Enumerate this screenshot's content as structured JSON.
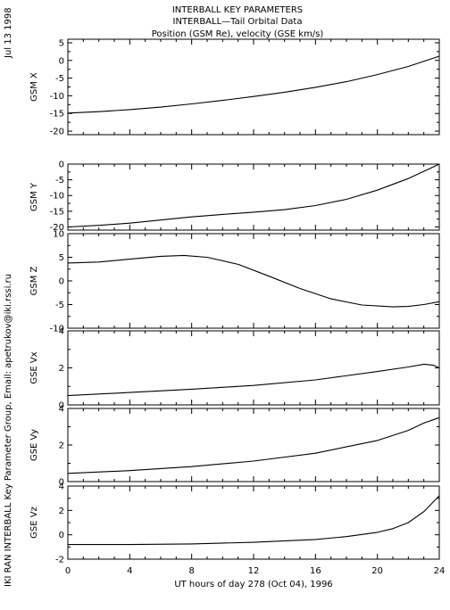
{
  "titles": [
    "INTERBALL KEY PARAMETERS",
    "INTERBALL—Tail Orbital Data",
    "Position (GSM Re), velocity (GSE km/s)"
  ],
  "side_date": "Jul 13 1998",
  "side_credit": "IKI RAN INTERBALL Key Parameter Group, Email: apetrukov@iki.rssi.ru",
  "chart_data": {
    "type": "line",
    "xlabel": "UT hours of day 278 (Oct 04), 1996",
    "xlim": [
      0,
      24
    ],
    "xticks": [
      0,
      4,
      8,
      12,
      16,
      20,
      24
    ],
    "panels": [
      {
        "name": "GSM X",
        "ylim": [
          -21,
          6
        ],
        "yticks": [
          5,
          0,
          -5,
          -10,
          -15,
          -20
        ],
        "x": [
          0,
          2,
          4,
          6,
          8,
          10,
          12,
          14,
          16,
          18,
          20,
          22,
          24
        ],
        "y": [
          -14.9,
          -14.5,
          -13.9,
          -13.2,
          -12.3,
          -11.3,
          -10.2,
          -9.0,
          -7.6,
          -6.0,
          -4.0,
          -1.7,
          1.2
        ]
      },
      {
        "name": "GSM Y",
        "ylim": [
          -21,
          0
        ],
        "yticks": [
          0,
          -5,
          -10,
          -15,
          -20
        ],
        "x": [
          0,
          2,
          4,
          6,
          8,
          10,
          12,
          14,
          16,
          18,
          20,
          22,
          24
        ],
        "y": [
          -20.0,
          -19.5,
          -18.8,
          -17.8,
          -16.8,
          -16.0,
          -15.3,
          -14.5,
          -13.2,
          -11.2,
          -8.3,
          -4.6,
          0.0
        ]
      },
      {
        "name": "GSM Z",
        "ylim": [
          -10,
          10
        ],
        "yticks": [
          10,
          5,
          0,
          -5,
          -10
        ],
        "x": [
          0,
          2,
          4,
          6,
          7.5,
          9,
          11,
          13,
          15,
          17,
          19,
          21,
          22,
          23,
          24
        ],
        "y": [
          3.8,
          4.0,
          4.6,
          5.2,
          5.4,
          5.0,
          3.5,
          1.0,
          -1.6,
          -3.8,
          -5.1,
          -5.5,
          -5.4,
          -5.0,
          -4.4
        ]
      },
      {
        "name": "GSE Vx",
        "ylim": [
          0,
          4
        ],
        "yticks": [
          4,
          2,
          0
        ],
        "x": [
          0,
          4,
          8,
          12,
          16,
          20,
          22,
          23,
          23.6,
          24
        ],
        "y": [
          0.5,
          0.67,
          0.85,
          1.05,
          1.35,
          1.8,
          2.05,
          2.2,
          2.15,
          2.0
        ]
      },
      {
        "name": "GSE Vy",
        "ylim": [
          0,
          4
        ],
        "yticks": [
          4,
          2,
          0
        ],
        "x": [
          0,
          4,
          8,
          12,
          16,
          20,
          22,
          23,
          24
        ],
        "y": [
          0.45,
          0.6,
          0.82,
          1.12,
          1.55,
          2.25,
          2.8,
          3.2,
          3.5
        ]
      },
      {
        "name": "GSE Vz",
        "ylim": [
          -2,
          4
        ],
        "yticks": [
          4,
          2,
          0,
          -2
        ],
        "x": [
          0,
          4,
          8,
          12,
          16,
          18,
          20,
          21,
          22,
          23,
          24
        ],
        "y": [
          -0.8,
          -0.8,
          -0.75,
          -0.62,
          -0.38,
          -0.15,
          0.2,
          0.5,
          1.0,
          1.9,
          3.2
        ]
      }
    ]
  }
}
